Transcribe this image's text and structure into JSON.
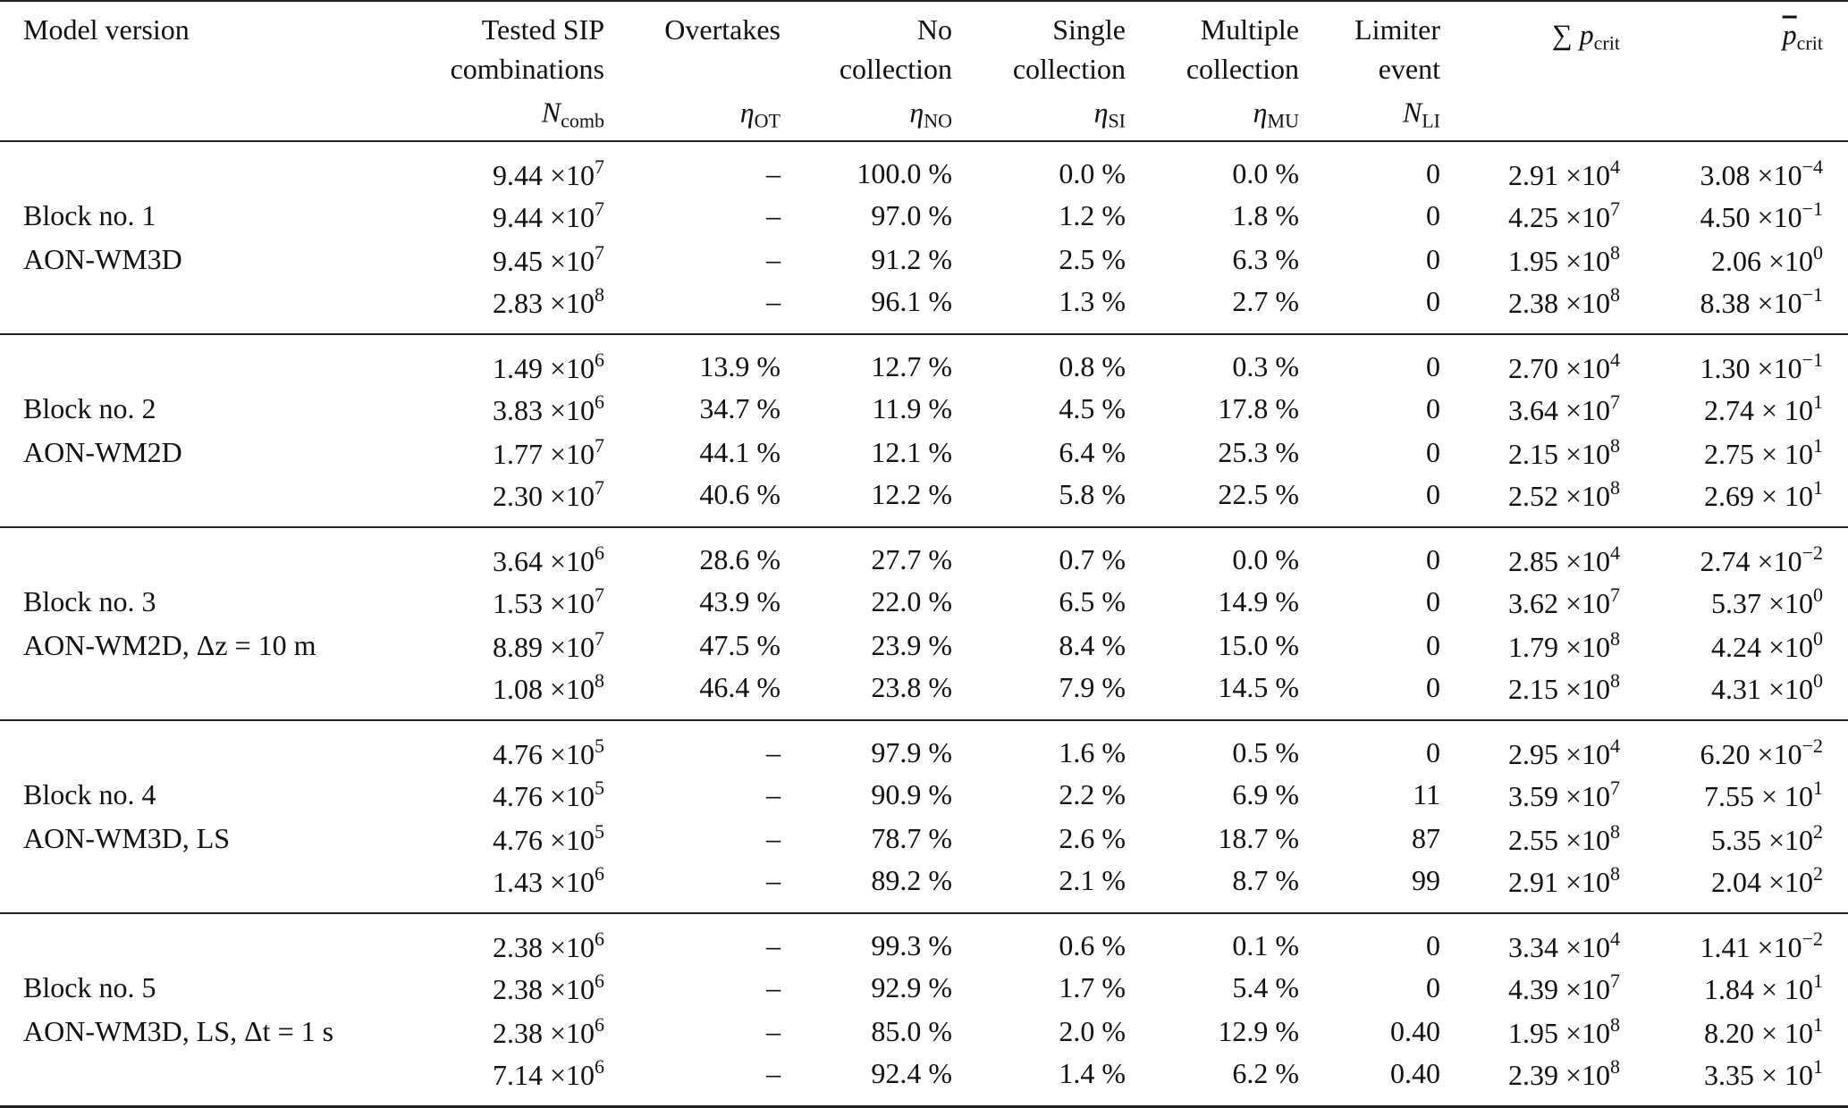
{
  "headers": [
    {
      "lines": [
        "Model version"
      ]
    },
    {
      "lines": [
        "Tested SIP",
        "combinations"
      ],
      "sym": "N",
      "sub": "comb"
    },
    {
      "lines": [
        "Overtakes"
      ],
      "sym": "η",
      "sub": "OT"
    },
    {
      "lines": [
        "No",
        "collection"
      ],
      "sym": "η",
      "sub": "NO"
    },
    {
      "lines": [
        "Single",
        "collection"
      ],
      "sym": "η",
      "sub": "SI"
    },
    {
      "lines": [
        "Multiple",
        "collection"
      ],
      "sym": "η",
      "sub": "MU"
    },
    {
      "lines": [
        "Limiter",
        "event"
      ],
      "sym": "N",
      "sub": "LI"
    },
    {
      "lines": [],
      "sym": "∑ p",
      "sub": "crit"
    },
    {
      "lines": [],
      "sym": "p",
      "sub": "crit"
    }
  ],
  "blocks": [
    {
      "labels": [
        "Block no. 1",
        "AON-WM3D"
      ],
      "rows": [
        [
          [
            "9.44 ×10",
            "7"
          ],
          "–",
          "100.0 %",
          "0.0 %",
          "0.0 %",
          "0",
          [
            "2.91 ×10",
            "4"
          ],
          [
            "3.08 ×10",
            "−4"
          ]
        ],
        [
          [
            "9.44 ×10",
            "7"
          ],
          "–",
          "97.0 %",
          "1.2 %",
          "1.8 %",
          "0",
          [
            "4.25 ×10",
            "7"
          ],
          [
            "4.50 ×10",
            "−1"
          ]
        ],
        [
          [
            "9.45 ×10",
            "7"
          ],
          "–",
          "91.2 %",
          "2.5 %",
          "6.3 %",
          "0",
          [
            "1.95 ×10",
            "8"
          ],
          [
            "2.06 ×10",
            "0"
          ]
        ],
        [
          [
            "2.83 ×10",
            "8"
          ],
          "–",
          "96.1 %",
          "1.3 %",
          "2.7 %",
          "0",
          [
            "2.38 ×10",
            "8"
          ],
          [
            "8.38 ×10",
            "−1"
          ]
        ]
      ]
    },
    {
      "labels": [
        "Block no. 2",
        "AON-WM2D"
      ],
      "rows": [
        [
          [
            "1.49 ×10",
            "6"
          ],
          "13.9 %",
          "12.7 %",
          "0.8 %",
          "0.3 %",
          "0",
          [
            "2.70 ×10",
            "4"
          ],
          [
            "1.30 ×10",
            "−1"
          ]
        ],
        [
          [
            "3.83 ×10",
            "6"
          ],
          "34.7 %",
          "11.9 %",
          "4.5 %",
          "17.8 %",
          "0",
          [
            "3.64 ×10",
            "7"
          ],
          [
            "2.74 × 10",
            "1"
          ]
        ],
        [
          [
            "1.77 ×10",
            "7"
          ],
          "44.1 %",
          "12.1 %",
          "6.4 %",
          "25.3 %",
          "0",
          [
            "2.15 ×10",
            "8"
          ],
          [
            "2.75 × 10",
            "1"
          ]
        ],
        [
          [
            "2.30 ×10",
            "7"
          ],
          "40.6 %",
          "12.2 %",
          "5.8 %",
          "22.5 %",
          "0",
          [
            "2.52 ×10",
            "8"
          ],
          [
            "2.69 × 10",
            "1"
          ]
        ]
      ]
    },
    {
      "labels": [
        "Block no. 3",
        "AON-WM2D, Δz = 10 m"
      ],
      "rows": [
        [
          [
            "3.64 ×10",
            "6"
          ],
          "28.6 %",
          "27.7 %",
          "0.7 %",
          "0.0 %",
          "0",
          [
            "2.85 ×10",
            "4"
          ],
          [
            "2.74 ×10",
            "−2"
          ]
        ],
        [
          [
            "1.53 ×10",
            "7"
          ],
          "43.9 %",
          "22.0 %",
          "6.5 %",
          "14.9 %",
          "0",
          [
            "3.62 ×10",
            "7"
          ],
          [
            "5.37 ×10",
            "0"
          ]
        ],
        [
          [
            "8.89 ×10",
            "7"
          ],
          "47.5 %",
          "23.9 %",
          "8.4 %",
          "15.0 %",
          "0",
          [
            "1.79 ×10",
            "8"
          ],
          [
            "4.24 ×10",
            "0"
          ]
        ],
        [
          [
            "1.08 ×10",
            "8"
          ],
          "46.4 %",
          "23.8 %",
          "7.9 %",
          "14.5 %",
          "0",
          [
            "2.15 ×10",
            "8"
          ],
          [
            "4.31 ×10",
            "0"
          ]
        ]
      ]
    },
    {
      "labels": [
        "Block no. 4",
        "AON-WM3D, LS"
      ],
      "rows": [
        [
          [
            "4.76 ×10",
            "5"
          ],
          "–",
          "97.9 %",
          "1.6 %",
          "0.5 %",
          "0",
          [
            "2.95 ×10",
            "4"
          ],
          [
            "6.20 ×10",
            "−2"
          ]
        ],
        [
          [
            "4.76 ×10",
            "5"
          ],
          "–",
          "90.9 %",
          "2.2 %",
          "6.9 %",
          "11",
          [
            "3.59 ×10",
            "7"
          ],
          [
            "7.55 × 10",
            "1"
          ]
        ],
        [
          [
            "4.76 ×10",
            "5"
          ],
          "–",
          "78.7 %",
          "2.6 %",
          "18.7 %",
          "87",
          [
            "2.55 ×10",
            "8"
          ],
          [
            "5.35 ×10",
            "2"
          ]
        ],
        [
          [
            "1.43 ×10",
            "6"
          ],
          "–",
          "89.2 %",
          "2.1 %",
          "8.7 %",
          "99",
          [
            "2.91 ×10",
            "8"
          ],
          [
            "2.04 ×10",
            "2"
          ]
        ]
      ]
    },
    {
      "labels": [
        "Block no. 5",
        "AON-WM3D, LS, Δt = 1 s"
      ],
      "rows": [
        [
          [
            "2.38 ×10",
            "6"
          ],
          "–",
          "99.3 %",
          "0.6 %",
          "0.1 %",
          "0",
          [
            "3.34 ×10",
            "4"
          ],
          [
            "1.41 ×10",
            "−2"
          ]
        ],
        [
          [
            "2.38 ×10",
            "6"
          ],
          "–",
          "92.9 %",
          "1.7 %",
          "5.4 %",
          "0",
          [
            "4.39 ×10",
            "7"
          ],
          [
            "1.84 × 10",
            "1"
          ]
        ],
        [
          [
            "2.38 ×10",
            "6"
          ],
          "–",
          "85.0 %",
          "2.0 %",
          "12.9 %",
          "0.40",
          [
            "1.95 ×10",
            "8"
          ],
          [
            "8.20 × 10",
            "1"
          ]
        ],
        [
          [
            "7.14 ×10",
            "6"
          ],
          "–",
          "92.4 %",
          "1.4 %",
          "6.2 %",
          "0.40",
          [
            "2.39 ×10",
            "8"
          ],
          [
            "3.35 × 10",
            "1"
          ]
        ]
      ]
    }
  ]
}
